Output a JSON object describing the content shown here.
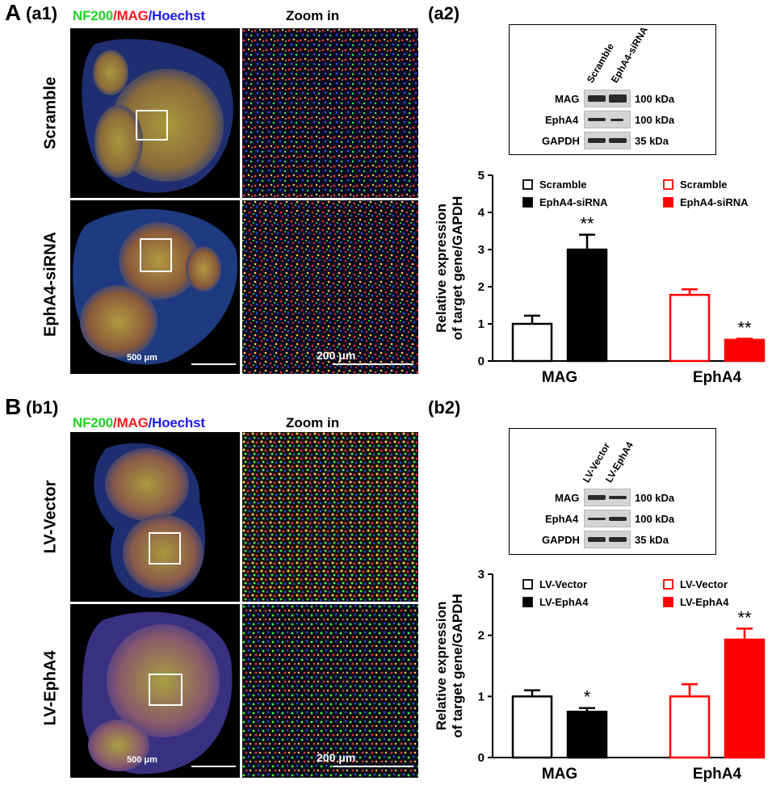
{
  "panel_A": {
    "letter": "A",
    "a1_label": "(a1)",
    "a2_label": "(a2)",
    "stain": {
      "nf200": "NF200",
      "sep1": "/",
      "mag": "MAG",
      "sep2": "/",
      "hoechst": "Hoechst",
      "colors": {
        "nf200": "#22d322",
        "mag": "#ff1a1a",
        "hoechst": "#1a1aff"
      }
    },
    "zoom_title": "Zoom in",
    "rows": [
      "Scramble",
      "EphA4-siRNA"
    ],
    "scalebar_overview": "500 μm",
    "scalebar_zoom": "200 μm",
    "blot": {
      "lanes": [
        "Scramble",
        "EphA4-siRNA"
      ],
      "proteins": [
        {
          "name": "MAG",
          "kda": "100 kDa"
        },
        {
          "name": "EphA4",
          "kda": "100 kDa"
        },
        {
          "name": "GAPDH",
          "kda": "35 kDa"
        }
      ]
    }
  },
  "panel_B": {
    "letter": "B",
    "b1_label": "(b1)",
    "b2_label": "(b2)",
    "stain": {
      "nf200": "NF200",
      "sep1": "/",
      "mag": "MAG",
      "sep2": "/",
      "hoechst": "Hoechst"
    },
    "zoom_title": "Zoom in",
    "rows": [
      "LV-Vector",
      "LV-EphA4"
    ],
    "scalebar_overview": "500 μm",
    "scalebar_zoom": "200 μm",
    "blot": {
      "lanes": [
        "LV-Vector",
        "LV-EphA4"
      ],
      "proteins": [
        {
          "name": "MAG",
          "kda": "100 kDa"
        },
        {
          "name": "EphA4",
          "kda": "100 kDa"
        },
        {
          "name": "GAPDH",
          "kda": "35 kDa"
        }
      ]
    }
  },
  "chart_data": [
    {
      "type": "bar",
      "ylabel_line1": "Relative expression",
      "ylabel_line2": "of target gene/GAPDH",
      "ylim": [
        0,
        5
      ],
      "yticks": [
        "0",
        "1",
        "2",
        "3",
        "4",
        "5"
      ],
      "categories": [
        "MAG",
        "EphA4"
      ],
      "colors": {
        "MAG": "#000000",
        "EphA4": "#ff0000"
      },
      "legends": [
        {
          "group": "MAG",
          "entries": [
            "Scramble",
            "EphA4-siRNA"
          ]
        },
        {
          "group": "EphA4",
          "entries": [
            "Scramble",
            "EphA4-siRNA"
          ]
        }
      ],
      "bars": [
        {
          "group": "MAG",
          "series": "Scramble",
          "value": 1.0,
          "error": 0.22,
          "filled": false,
          "sig": ""
        },
        {
          "group": "MAG",
          "series": "EphA4-siRNA",
          "value": 3.0,
          "error": 0.4,
          "filled": true,
          "sig": "**"
        },
        {
          "group": "EphA4",
          "series": "Scramble",
          "value": 1.78,
          "error": 0.15,
          "filled": false,
          "sig": ""
        },
        {
          "group": "EphA4",
          "series": "EphA4-siRNA",
          "value": 0.57,
          "error": 0.03,
          "filled": true,
          "sig": "**"
        }
      ]
    },
    {
      "type": "bar",
      "ylabel_line1": "Relative expression",
      "ylabel_line2": "of target gene/GAPDH",
      "ylim": [
        0,
        3
      ],
      "yticks": [
        "0",
        "1",
        "2",
        "3"
      ],
      "categories": [
        "MAG",
        "EphA4"
      ],
      "colors": {
        "MAG": "#000000",
        "EphA4": "#ff0000"
      },
      "legends": [
        {
          "group": "MAG",
          "entries": [
            "LV-Vector",
            "LV-EphA4"
          ]
        },
        {
          "group": "EphA4",
          "entries": [
            "LV-Vector",
            "LV-EphA4"
          ]
        }
      ],
      "bars": [
        {
          "group": "MAG",
          "series": "LV-Vector",
          "value": 1.0,
          "error": 0.1,
          "filled": false,
          "sig": ""
        },
        {
          "group": "MAG",
          "series": "LV-EphA4",
          "value": 0.75,
          "error": 0.06,
          "filled": true,
          "sig": "*"
        },
        {
          "group": "EphA4",
          "series": "LV-Vector",
          "value": 1.0,
          "error": 0.2,
          "filled": false,
          "sig": ""
        },
        {
          "group": "EphA4",
          "series": "LV-EphA4",
          "value": 1.93,
          "error": 0.18,
          "filled": true,
          "sig": "**"
        }
      ]
    }
  ]
}
